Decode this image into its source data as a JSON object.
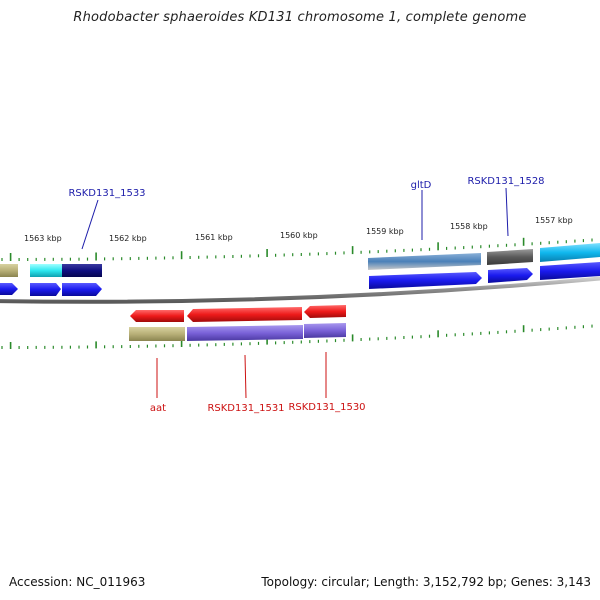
{
  "title": "Rhodobacter sphaeroides KD131 chromosome 1, complete genome",
  "footer": {
    "accession": "Accession: NC_011963",
    "summary": "Topology: circular; Length: 3,152,792 bp; Genes: 3,143"
  },
  "ruler": [
    {
      "label": "1563 kbp"
    },
    {
      "label": "1562 kbp"
    },
    {
      "label": "1561 kbp"
    },
    {
      "label": "1560 kbp"
    },
    {
      "label": "1559 kbp"
    },
    {
      "label": "1558 kbp"
    },
    {
      "label": "1557 kbp"
    }
  ],
  "gene_labels": [
    {
      "text": "RSKD131_1533",
      "strand": "forward",
      "color": "#1c1caa"
    },
    {
      "text": "gltD",
      "strand": "forward",
      "color": "#1c1caa"
    },
    {
      "text": "RSKD131_1528",
      "strand": "forward",
      "color": "#1c1caa"
    },
    {
      "text": "aat",
      "strand": "reverse",
      "color": "#cc1111"
    },
    {
      "text": "RSKD131_1531",
      "strand": "reverse",
      "color": "#cc1111"
    },
    {
      "text": "RSKD131_1530",
      "strand": "reverse",
      "color": "#cc1111"
    }
  ],
  "colors": {
    "forward_gene": "#1a1aee",
    "reverse_gene": "#ee1a1a",
    "backbone": "#8a8a8a",
    "tick": "#2a8a2a"
  }
}
